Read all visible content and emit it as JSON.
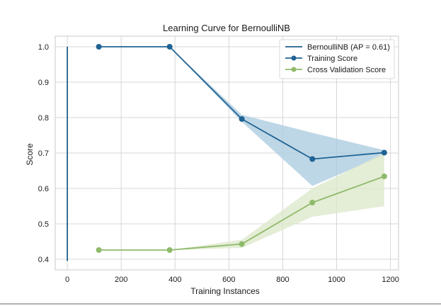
{
  "chart_data": {
    "type": "line",
    "title": "Learning Curve for BernoulliNB",
    "xlabel": "Training Instances",
    "ylabel": "Score",
    "xlim": [
      -45,
      1230
    ],
    "ylim": [
      0.37,
      1.03
    ],
    "x_ticks": [
      0,
      200,
      400,
      600,
      800,
      1000,
      1200
    ],
    "y_ticks": [
      0.4,
      0.5,
      0.6,
      0.7,
      0.8,
      0.9,
      1.0
    ],
    "x_tick_labels": [
      "0",
      "200",
      "400",
      "600",
      "800",
      "1000",
      "1200"
    ],
    "y_tick_labels": [
      "0.4",
      "0.5",
      "0.6",
      "0.7",
      "0.8",
      "0.9",
      "1.0"
    ],
    "grid": true,
    "legend_position": "top-right",
    "series": [
      {
        "name": "BernoulliNB (AP = 0.61)",
        "color": "#1f5f8b",
        "x": [
          0,
          0,
          0,
          0
        ],
        "y": [
          1.0,
          0.53,
          0.53,
          0.395
        ],
        "markers": false
      },
      {
        "name": "Training Score",
        "color": "#1f6394",
        "x": [
          117,
          380,
          648,
          910,
          1177
        ],
        "y": [
          1.0,
          1.0,
          0.796,
          0.683,
          0.701
        ],
        "band_lower": [
          1.0,
          1.0,
          0.788,
          0.607,
          0.694
        ],
        "band_upper": [
          1.0,
          1.0,
          0.808,
          0.757,
          0.708
        ],
        "band_color": "#aecde0",
        "markers": true
      },
      {
        "name": "Cross Validation Score",
        "color": "#8fba6a",
        "x": [
          117,
          380,
          648,
          910,
          1177
        ],
        "y": [
          0.426,
          0.426,
          0.443,
          0.56,
          0.634
        ],
        "band_lower": [
          0.426,
          0.426,
          0.432,
          0.52,
          0.55
        ],
        "band_upper": [
          0.426,
          0.426,
          0.455,
          0.6,
          0.7
        ],
        "band_color": "#dde9cc",
        "markers": true
      }
    ]
  }
}
